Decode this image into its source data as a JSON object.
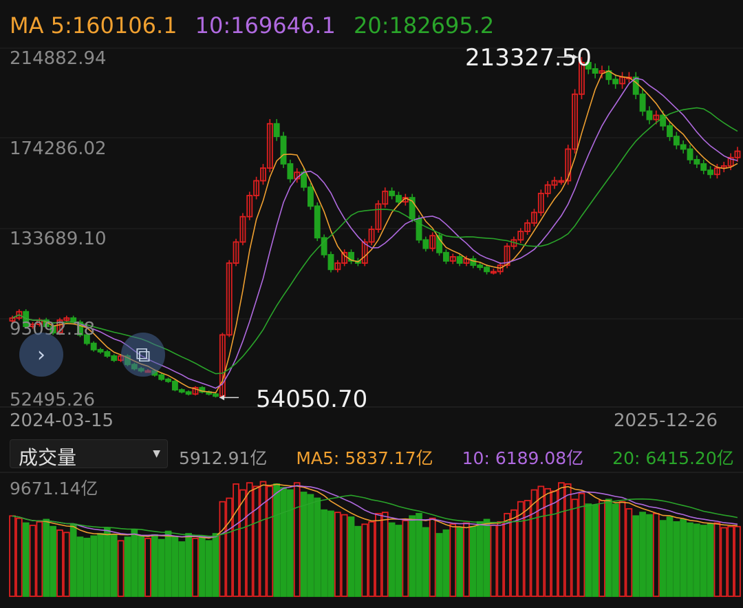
{
  "header": {
    "ma5": "MA 5:160106.1",
    "ma10": "10:169646.1",
    "ma20": "20:182695.2"
  },
  "price_axis": [
    "214882.94",
    "174286.02",
    "133689.10",
    "93092.18",
    "52495.26"
  ],
  "dates": {
    "start": "2024-03-15",
    "end": "2025-12-26"
  },
  "annotations": {
    "high": "213327.50",
    "low": "54050.70"
  },
  "volume": {
    "selector": "成交量",
    "current": "5912.91亿",
    "ma5": "MA5: 5837.17亿",
    "ma10": "10: 6189.08亿",
    "ma20": "20: 6415.20亿",
    "max": "9671.14亿"
  },
  "icons": {
    "expand": "chevron-right-icon",
    "drawing": "drawing-tool-icon"
  },
  "colors": {
    "up": "#e02020",
    "down": "#1fa31f",
    "ma5": "#f0a030",
    "ma10": "#b06ae0",
    "ma20": "#2aa52a"
  },
  "chart_data": {
    "type": "candlestick",
    "ylim": [
      52495.26,
      214882.94
    ],
    "close": [
      92000,
      95000,
      88000,
      89000,
      91000,
      88000,
      85000,
      91000,
      92000,
      90000,
      84000,
      80000,
      77000,
      76000,
      74000,
      72000,
      74000,
      70000,
      68000,
      67000,
      67000,
      65000,
      63000,
      62000,
      58000,
      57000,
      56000,
      59000,
      57000,
      56000,
      55000,
      84000,
      118000,
      128000,
      140000,
      150000,
      157000,
      163000,
      184000,
      178000,
      165000,
      158000,
      161000,
      154000,
      145000,
      130000,
      122000,
      115000,
      118000,
      123000,
      119000,
      118000,
      128000,
      134000,
      146000,
      152000,
      150000,
      147000,
      149000,
      139000,
      129000,
      125000,
      131000,
      123000,
      119000,
      121000,
      118000,
      120000,
      117000,
      116000,
      114000,
      114000,
      117000,
      126000,
      129000,
      133000,
      137000,
      142000,
      151000,
      155000,
      157000,
      157000,
      172000,
      198000,
      213000,
      210000,
      208000,
      209000,
      205000,
      203000,
      206000,
      206000,
      198000,
      190000,
      186000,
      188000,
      183000,
      178000,
      174000,
      172000,
      167000,
      165000,
      162000,
      160000,
      163000,
      164000,
      168000,
      171000
    ],
    "volume_yi": [
      6800,
      6600,
      6200,
      6000,
      6300,
      6500,
      5900,
      5600,
      5400,
      6100,
      5000,
      4900,
      5100,
      5300,
      5800,
      5200,
      4700,
      5000,
      5600,
      5100,
      4900,
      5200,
      4800,
      5500,
      5000,
      4600,
      5300,
      4900,
      5100,
      4700,
      5300,
      8000,
      8300,
      9500,
      9000,
      9600,
      9300,
      9700,
      9300,
      9500,
      9200,
      9000,
      9600,
      8800,
      8600,
      8300,
      7300,
      7200,
      7100,
      6900,
      6700,
      5900,
      6100,
      6300,
      7000,
      7100,
      6200,
      6000,
      6400,
      6800,
      7000,
      5800,
      6600,
      5300,
      5600,
      6100,
      5800,
      6200,
      5900,
      6300,
      6500,
      6000,
      6300,
      7000,
      7300,
      8000,
      8100,
      9000,
      9300,
      9100,
      8900,
      9600,
      9500,
      8200,
      8700,
      7800,
      7700,
      8100,
      8200,
      7800,
      8000,
      7400,
      6800,
      7100,
      6900,
      7000,
      6400,
      6700,
      6300,
      6500,
      6200,
      6100,
      6000,
      6100,
      6200,
      5800,
      5900,
      5900
    ]
  }
}
